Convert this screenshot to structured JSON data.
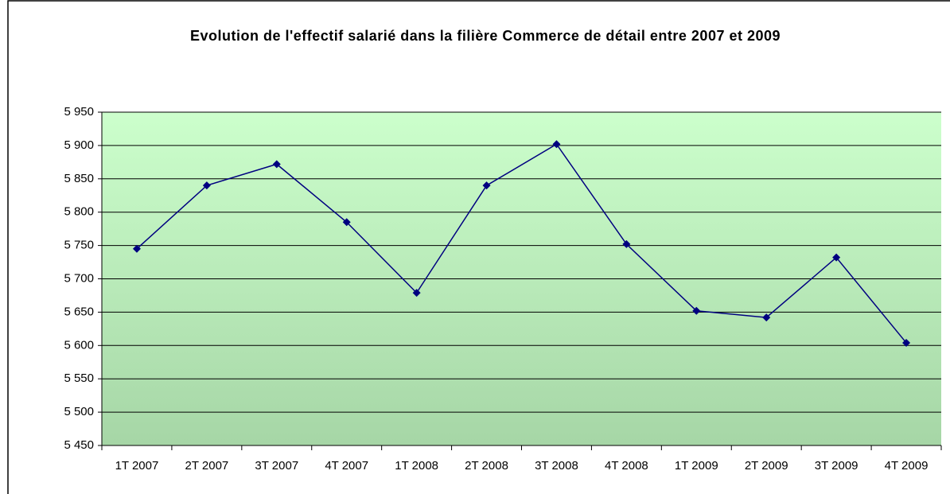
{
  "chart_data": {
    "type": "line",
    "title": "Evolution de l'effectif salarié dans la filière Commerce de détail entre 2007 et 2009",
    "categories": [
      "1T 2007",
      "2T 2007",
      "3T 2007",
      "4T 2007",
      "1T 2008",
      "2T 2008",
      "3T 2008",
      "4T 2008",
      "1T 2009",
      "2T 2009",
      "3T 2009",
      "4T 2009"
    ],
    "series": [
      {
        "color": "#000080",
        "values": [
          5745,
          5840,
          5872,
          5785,
          5679,
          5840,
          5902,
          5752,
          5652,
          5642,
          5732,
          5604
        ]
      }
    ],
    "ylim": [
      5450,
      5950
    ],
    "yticks": [
      {
        "value": 5450,
        "label": "5 450"
      },
      {
        "value": 5500,
        "label": "5 500"
      },
      {
        "value": 5550,
        "label": "5 550"
      },
      {
        "value": 5600,
        "label": "5 600"
      },
      {
        "value": 5650,
        "label": "5 650"
      },
      {
        "value": 5700,
        "label": "5 700"
      },
      {
        "value": 5750,
        "label": "5 750"
      },
      {
        "value": 5800,
        "label": "5 800"
      },
      {
        "value": 5850,
        "label": "5 850"
      },
      {
        "value": 5900,
        "label": "5 900"
      },
      {
        "value": 5950,
        "label": "5 950"
      }
    ],
    "grid": true
  }
}
